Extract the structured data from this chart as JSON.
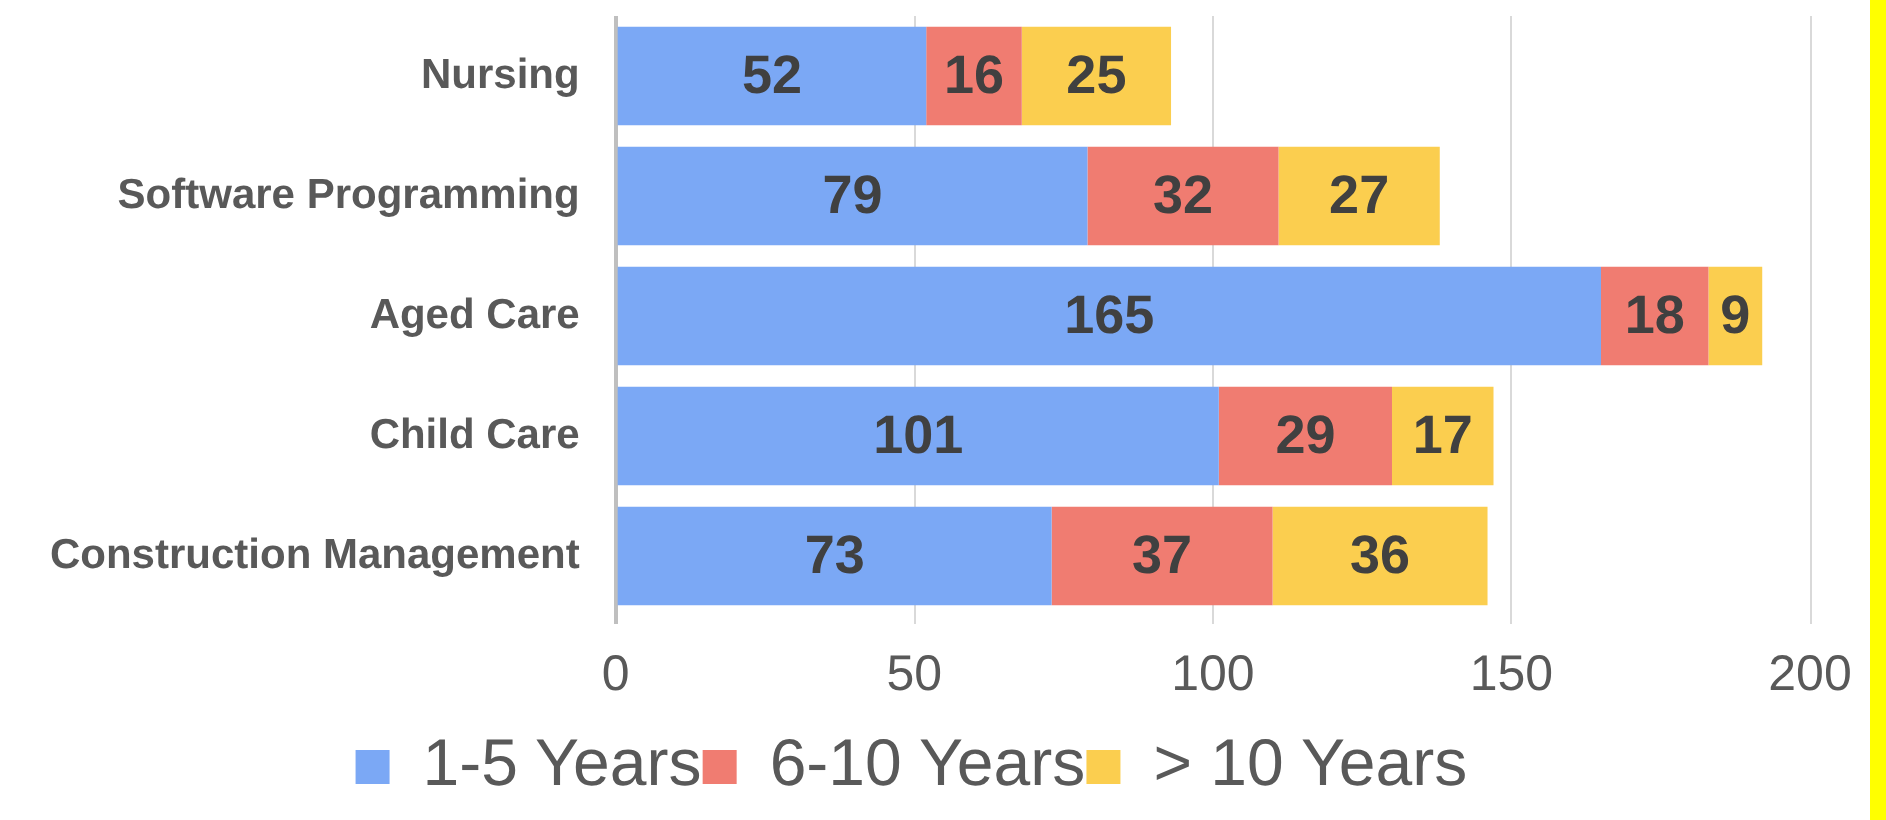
{
  "chart_data": {
    "type": "bar",
    "orientation": "horizontal",
    "stacked": true,
    "categories": [
      "Nursing",
      "Software Programming",
      "Aged Care",
      "Child Care",
      "Construction Management"
    ],
    "series": [
      {
        "name": "1-5 Years",
        "color": "#7ba8f5",
        "values": [
          52,
          79,
          165,
          101,
          73
        ]
      },
      {
        "name": "6-10 Years",
        "color": "#f07c71",
        "values": [
          16,
          32,
          18,
          29,
          37
        ]
      },
      {
        "name": "> 10 Years",
        "color": "#fbce4f",
        "values": [
          25,
          27,
          9,
          17,
          36
        ]
      }
    ],
    "xlim": [
      0,
      200
    ],
    "xticks": [
      0,
      50,
      100,
      150,
      200
    ],
    "grid": "x",
    "legend": "bottom",
    "data_labels": true
  }
}
